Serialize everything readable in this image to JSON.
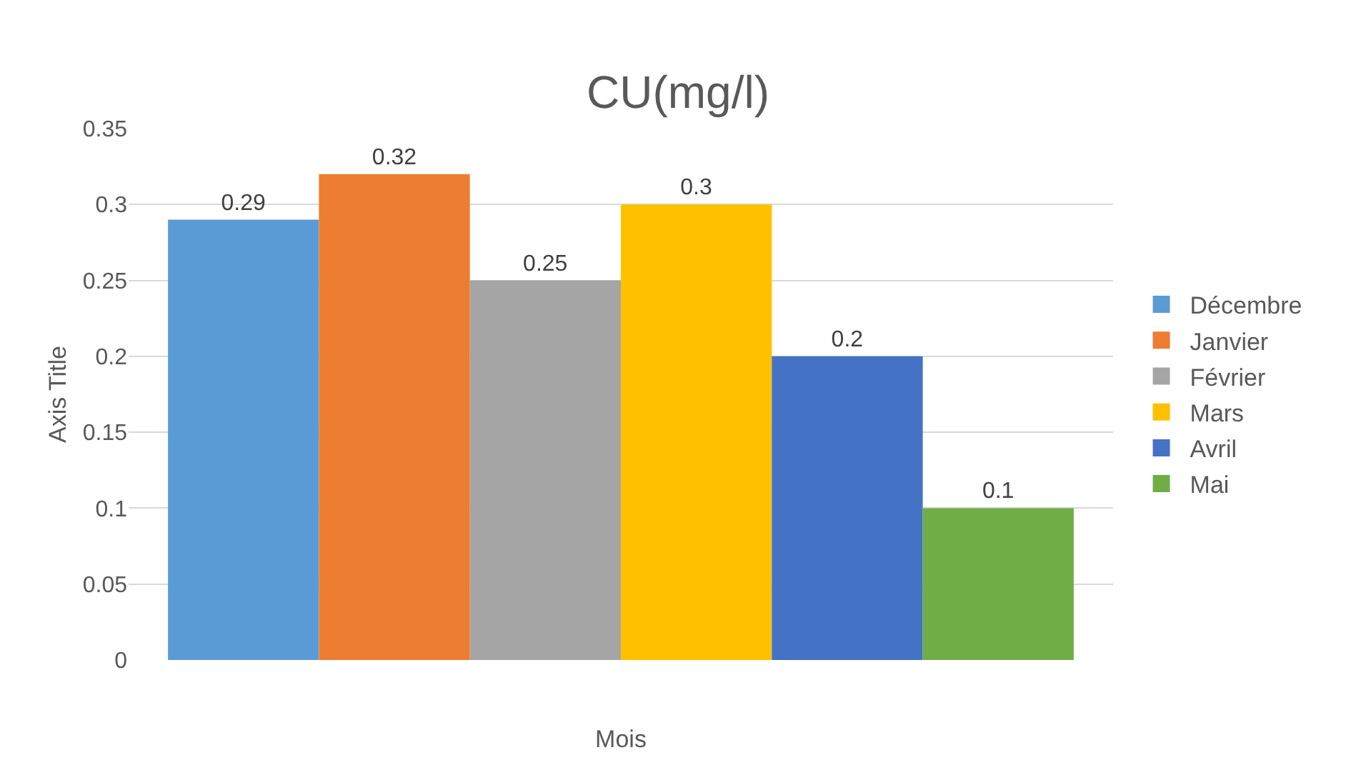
{
  "chart_data": {
    "type": "bar",
    "title": "CU(mg/l)",
    "xlabel": "Mois",
    "ylabel": "Axis Title",
    "categories": [
      null
    ],
    "series": [
      {
        "name": "Décembre",
        "color": "#5b9bd5",
        "values": [
          0.29
        ]
      },
      {
        "name": "Janvier",
        "color": "#ed7d31",
        "values": [
          0.32
        ]
      },
      {
        "name": "Février",
        "color": "#a5a5a5",
        "values": [
          0.25
        ]
      },
      {
        "name": "Mars",
        "color": "#ffc000",
        "values": [
          0.3
        ]
      },
      {
        "name": "Avril",
        "color": "#4472c4",
        "values": [
          0.2
        ]
      },
      {
        "name": "Mai",
        "color": "#70ad47",
        "values": [
          0.1
        ]
      }
    ],
    "ylim": [
      0,
      0.35
    ],
    "yticks": [
      0,
      0.05,
      0.1,
      0.15,
      0.2,
      0.25,
      0.3,
      0.35
    ],
    "grid": "y",
    "legend": "right",
    "data_labels": true
  }
}
